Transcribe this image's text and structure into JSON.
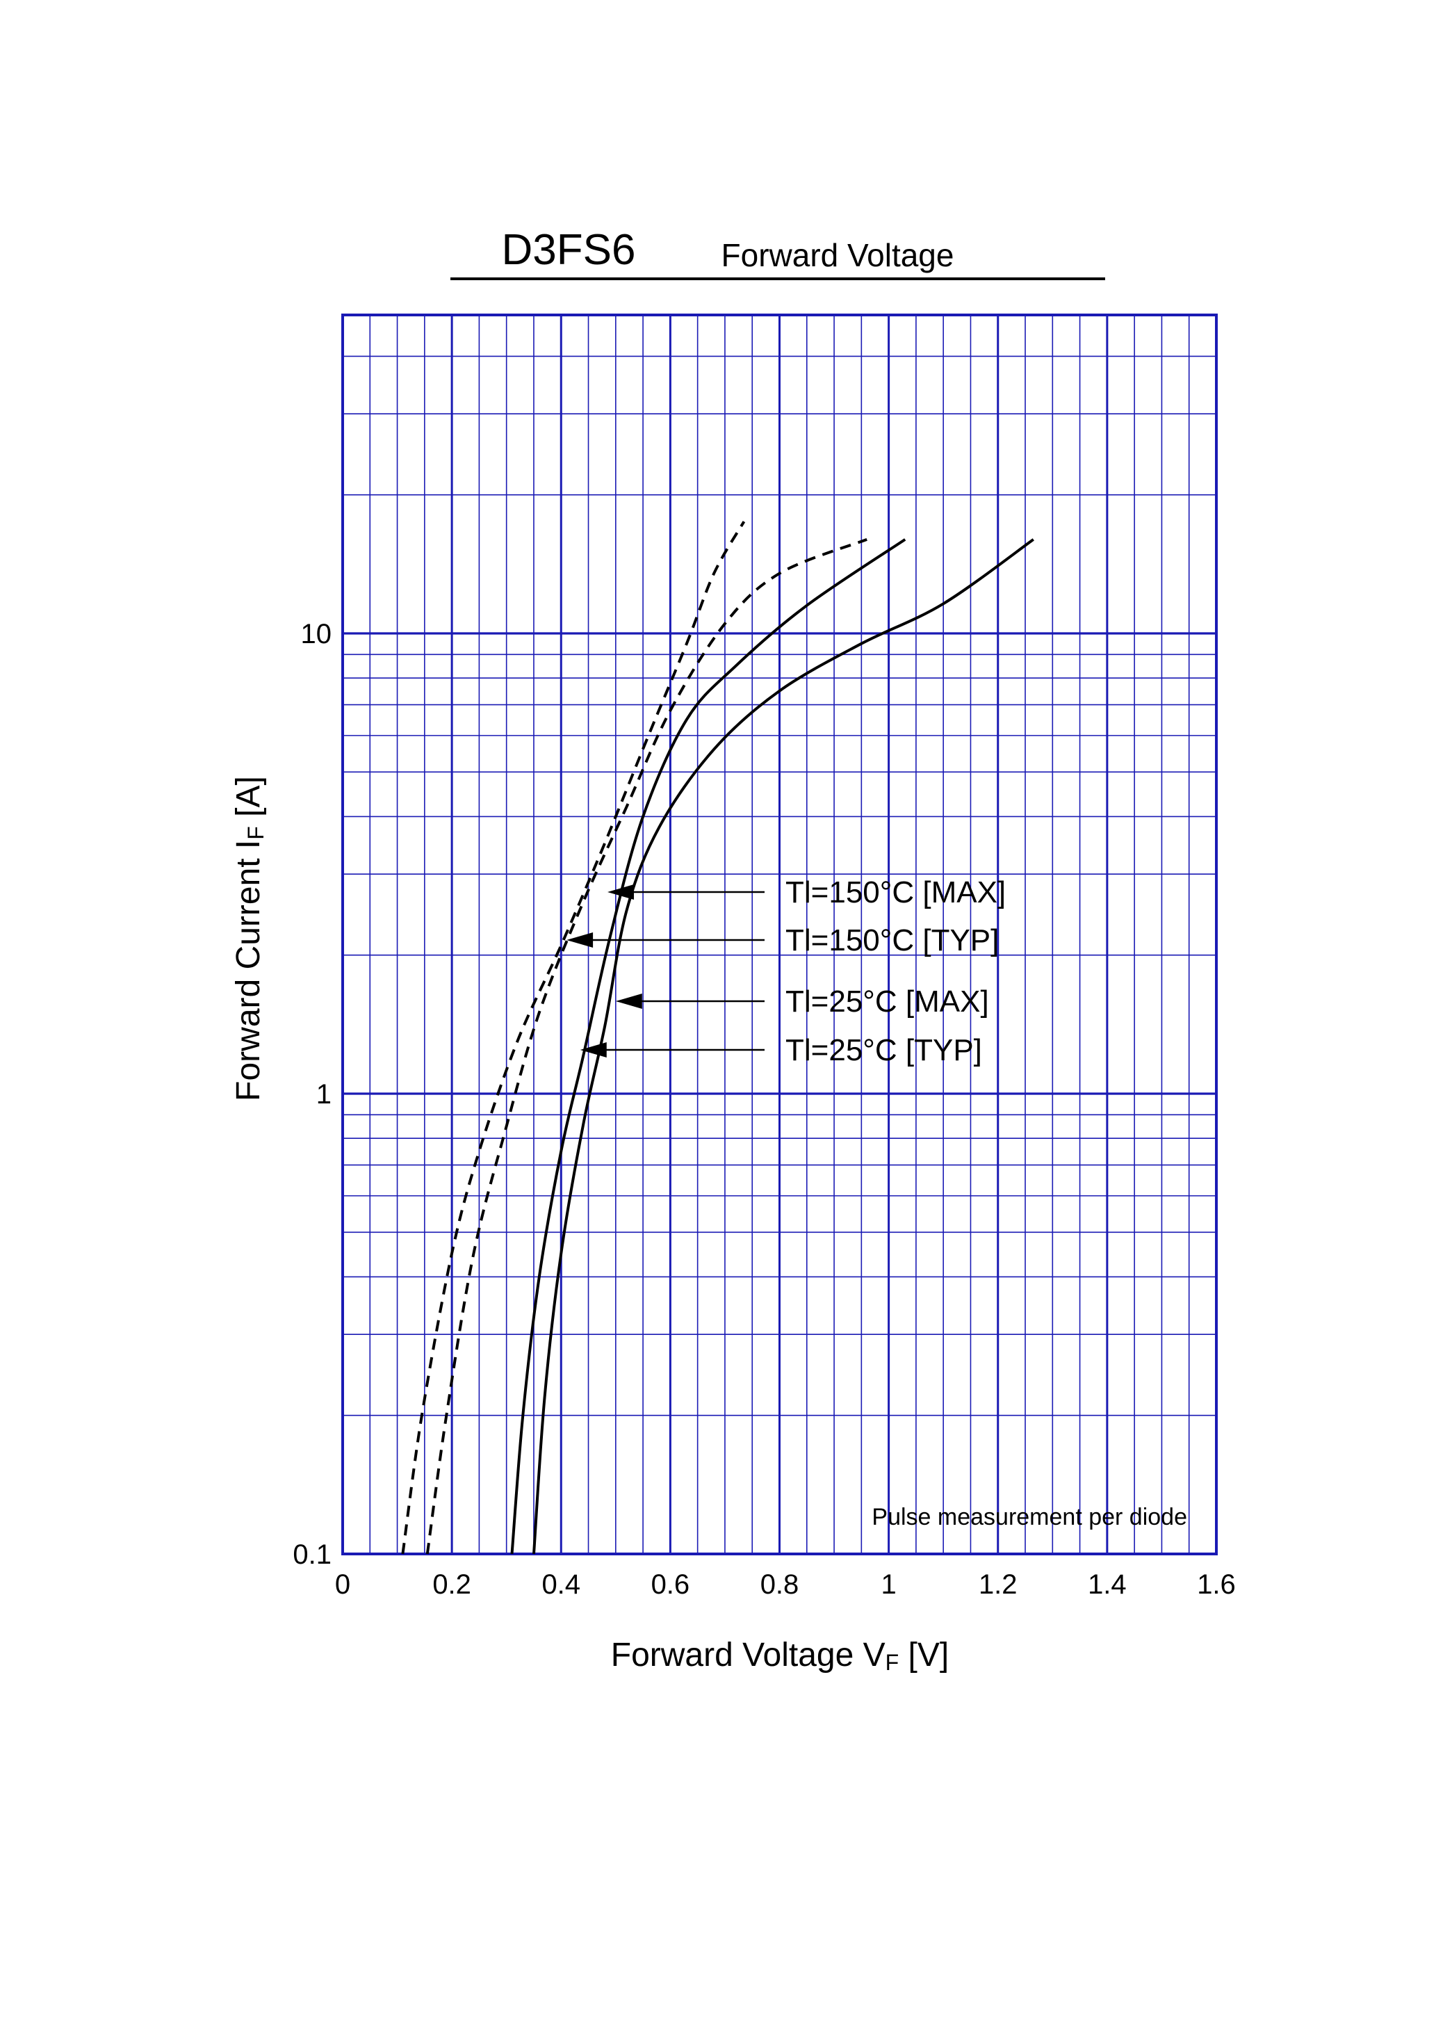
{
  "chart_data": {
    "type": "line",
    "title": "D3FS6",
    "subtitle": "Forward Voltage",
    "xlabel": "Forward Voltage VF [V]",
    "xlabel_parts": {
      "main": "Forward Voltage  V",
      "sub": "F",
      "unit": "  [V]"
    },
    "ylabel": "Forward Current IF [A]",
    "ylabel_parts": {
      "main": "Forward Current  I",
      "sub": "F",
      "unit": "  [A]"
    },
    "xlim": [
      0,
      1.6
    ],
    "ylim": [
      0.1,
      50
    ],
    "y_scale": "log",
    "x_ticks": [
      "0",
      "0.2",
      "0.4",
      "0.6",
      "0.8",
      "1",
      "1.2",
      "1.4",
      "1.6"
    ],
    "x_tick_values": [
      0,
      0.2,
      0.4,
      0.6,
      0.8,
      1.0,
      1.2,
      1.4,
      1.6
    ],
    "y_ticks": [
      "0.1",
      "1",
      "10"
    ],
    "y_tick_values": [
      0.1,
      1,
      10
    ],
    "grid": true,
    "grid_color": "#1a1ab4",
    "annotation": "Pulse measurement per diode",
    "series": [
      {
        "name": "Tl=150°C [MAX]",
        "style": "dashed",
        "points": [
          [
            0.155,
            0.1
          ],
          [
            0.19,
            0.2
          ],
          [
            0.24,
            0.45
          ],
          [
            0.3,
            0.85
          ],
          [
            0.36,
            1.5
          ],
          [
            0.44,
            2.6
          ],
          [
            0.52,
            4.2
          ],
          [
            0.6,
            6.8
          ],
          [
            0.7,
            10.5
          ],
          [
            0.8,
            13.5
          ],
          [
            0.96,
            16
          ]
        ],
        "arrow_tip": [
          0.485,
          2.7
        ]
      },
      {
        "name": "Tl=150°C [TYP]",
        "style": "dashed",
        "points": [
          [
            0.11,
            0.1
          ],
          [
            0.145,
            0.2
          ],
          [
            0.2,
            0.45
          ],
          [
            0.25,
            0.75
          ],
          [
            0.32,
            1.3
          ],
          [
            0.4,
            2.1
          ],
          [
            0.48,
            3.5
          ],
          [
            0.56,
            6.0
          ],
          [
            0.63,
            9.5
          ],
          [
            0.68,
            13.5
          ],
          [
            0.735,
            17.5
          ]
        ],
        "arrow_tip": [
          0.41,
          2.1
        ]
      },
      {
        "name": "Tl=25°C [MAX]",
        "style": "solid",
        "points": [
          [
            0.35,
            0.1
          ],
          [
            0.37,
            0.22
          ],
          [
            0.4,
            0.45
          ],
          [
            0.44,
            0.85
          ],
          [
            0.48,
            1.4
          ],
          [
            0.52,
            2.5
          ],
          [
            0.58,
            3.8
          ],
          [
            0.68,
            5.6
          ],
          [
            0.8,
            7.5
          ],
          [
            0.95,
            9.5
          ],
          [
            1.1,
            11.6
          ],
          [
            1.265,
            16
          ]
        ],
        "arrow_tip": [
          0.5,
          1.55
        ]
      },
      {
        "name": "Tl=25°C [TYP]",
        "style": "solid",
        "points": [
          [
            0.31,
            0.1
          ],
          [
            0.33,
            0.2
          ],
          [
            0.36,
            0.4
          ],
          [
            0.4,
            0.75
          ],
          [
            0.44,
            1.2
          ],
          [
            0.49,
            2.2
          ],
          [
            0.55,
            4.0
          ],
          [
            0.63,
            6.5
          ],
          [
            0.72,
            8.5
          ],
          [
            0.85,
            11.5
          ],
          [
            1.03,
            16
          ]
        ],
        "arrow_tip": [
          0.435,
          1.25
        ]
      }
    ]
  }
}
